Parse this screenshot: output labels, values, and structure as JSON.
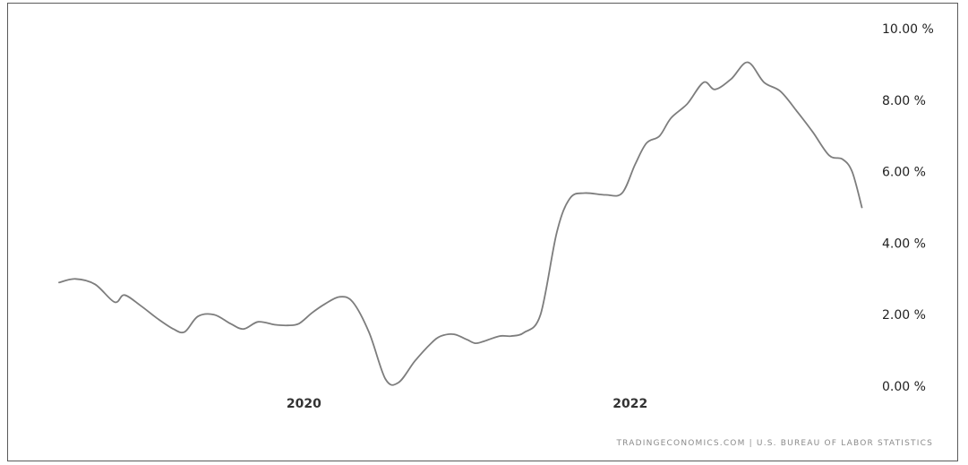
{
  "chart_data": {
    "type": "line",
    "title": "",
    "xlabel": "",
    "ylabel": "",
    "y_tick_labels": [
      "10.00 %",
      "8.00 %",
      "6.00 %",
      "4.00 %",
      "2.00 %",
      "0.00 %"
    ],
    "y_ticks": [
      10,
      8,
      6,
      4,
      2,
      0
    ],
    "x_tick_labels": [
      "2020",
      "2022"
    ],
    "x_ticks": [
      2020.0,
      2022.0
    ],
    "ylim": [
      0,
      10
    ],
    "xlim": [
      2018.5,
      2023.45
    ],
    "grid": false,
    "legend": "none",
    "line_color": "#7d7d7d",
    "source": "TRADINGECONOMICS.COM  |  U.S. BUREAU OF LABOR STATISTICS",
    "series": [
      {
        "x": [
          2018.5,
          2018.6,
          2018.72,
          2018.84,
          2018.9,
          2019.0,
          2019.1,
          2019.2,
          2019.27,
          2019.35,
          2019.45,
          2019.55,
          2019.63,
          2019.72,
          2019.82,
          2019.9,
          2019.97,
          2020.05,
          2020.13,
          2020.22,
          2020.3,
          2020.4,
          2020.5,
          2020.58,
          2020.68,
          2020.78,
          2020.84,
          2020.92,
          2021.0,
          2021.05,
          2021.1,
          2021.2,
          2021.27,
          2021.35,
          2021.45,
          2021.55,
          2021.63,
          2021.72,
          2021.85,
          2021.95,
          2022.03,
          2022.1,
          2022.18,
          2022.25,
          2022.35,
          2022.45,
          2022.52,
          2022.62,
          2022.72,
          2022.82,
          2022.92,
          2023.02,
          2023.12,
          2023.22,
          2023.3,
          2023.36,
          2023.42
        ],
        "y": [
          2.9,
          3.0,
          2.85,
          2.35,
          2.55,
          2.25,
          1.9,
          1.6,
          1.52,
          1.95,
          2.0,
          1.75,
          1.6,
          1.8,
          1.72,
          1.7,
          1.75,
          2.05,
          2.3,
          2.5,
          2.35,
          1.5,
          0.2,
          0.1,
          0.7,
          1.2,
          1.4,
          1.45,
          1.3,
          1.2,
          1.25,
          1.4,
          1.4,
          1.5,
          2.0,
          4.3,
          5.25,
          5.4,
          5.35,
          5.4,
          6.2,
          6.8,
          7.0,
          7.5,
          7.9,
          8.5,
          8.3,
          8.6,
          9.06,
          8.5,
          8.25,
          7.7,
          7.1,
          6.45,
          6.35,
          6.0,
          5.0
        ]
      }
    ]
  }
}
